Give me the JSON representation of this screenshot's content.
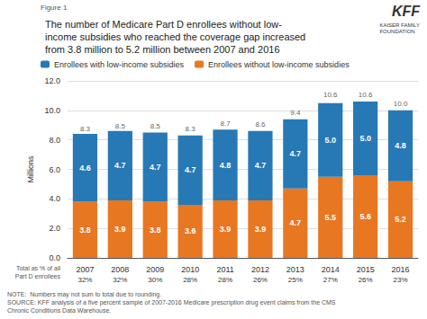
{
  "chart_data": {
    "type": "bar",
    "stacked": true,
    "figure_label": "Figure 1",
    "title": "The number of Medicare Part D enrollees without low-\nincome subsidies who reached the coverage gap increased\nfrom 3.8 million to 5.2 million between 2007 and 2016",
    "categories": [
      "2007",
      "2008",
      "2009",
      "2010",
      "2011",
      "2012",
      "2013",
      "2014",
      "2015",
      "2016"
    ],
    "series": [
      {
        "name": "Enrollees without low-income subsidies",
        "color": "#E87722",
        "values": [
          3.8,
          3.9,
          3.8,
          3.6,
          3.9,
          3.9,
          4.7,
          5.5,
          5.6,
          5.2
        ],
        "value_labels": [
          "3.8",
          "3.9",
          "3.8",
          "3.6",
          "3.9",
          "3.9",
          "4.7",
          "5.5",
          "5.6",
          "5.2"
        ]
      },
      {
        "name": "Enrollees with low-income subsidies",
        "color": "#2679B5",
        "values": [
          4.6,
          4.7,
          4.7,
          4.7,
          4.8,
          4.7,
          4.7,
          5.0,
          5.0,
          4.8
        ],
        "value_labels": [
          "4.6",
          "4.7",
          "4.7",
          "4.7",
          "4.8",
          "4.7",
          "4.7",
          "5.0",
          "5.0",
          "4.8"
        ]
      }
    ],
    "totals": {
      "values": [
        8.3,
        8.5,
        8.5,
        8.3,
        8.7,
        8.6,
        9.4,
        10.6,
        10.6,
        10.0
      ],
      "value_labels": [
        "8.3",
        "8.5",
        "8.5",
        "8.3",
        "8.7",
        "8.6",
        "9.4",
        "10.6",
        "10.6",
        "10.0"
      ]
    },
    "shares": {
      "label": "Total as % of all\nPart D enrollees",
      "values": [
        32,
        32,
        30,
        28,
        28,
        26,
        25,
        27,
        26,
        23
      ],
      "value_labels": [
        "32%",
        "32%",
        "30%",
        "28%",
        "28%",
        "26%",
        "25%",
        "27%",
        "26%",
        "23%"
      ]
    },
    "ylabel": "Millions",
    "ylim": [
      0,
      12.0
    ],
    "yticks": [
      {
        "value": 0,
        "label": "0.0"
      },
      {
        "value": 2,
        "label": "2.0"
      },
      {
        "value": 4,
        "label": "4.0"
      },
      {
        "value": 6,
        "label": "6.0"
      },
      {
        "value": 8,
        "label": "8.0"
      },
      {
        "value": 10,
        "label": "10.0"
      },
      {
        "value": 12,
        "label": "12.0"
      }
    ],
    "grid": true,
    "legend": "upper left",
    "data_labels": true,
    "notes": [
      "NOTE:  Numbers may not sum to total due to rounding.",
      "SOURCE: KFF analysis of a five percent sample of 2007-2016 Medicare prescription drug event claims from the CMS",
      "Chronic Conditions Data Warehouse."
    ],
    "logo": "KFF",
    "logo_subtitle": "KAISER FAMILY\nFOUNDATION"
  }
}
